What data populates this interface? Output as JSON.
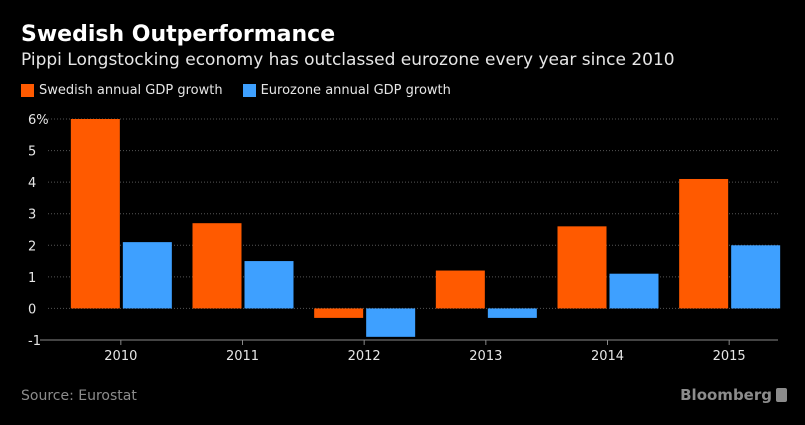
{
  "chart_data": {
    "type": "bar",
    "title": "Swedish Outperformance",
    "subtitle": "Pippi Longstocking economy has outclassed eurozone every year since 2010",
    "categories": [
      "2010",
      "2011",
      "2012",
      "2013",
      "2014",
      "2015"
    ],
    "series": [
      {
        "name": "Swedish annual GDP growth",
        "color": "#ff5a00",
        "values": [
          6.0,
          2.7,
          -0.3,
          1.2,
          2.6,
          4.1
        ]
      },
      {
        "name": "Eurozone annual GDP growth",
        "color": "#3ea0ff",
        "values": [
          2.1,
          1.5,
          -0.9,
          -0.3,
          1.1,
          2.0
        ]
      }
    ],
    "xlabel": "",
    "ylabel": "",
    "ylim": [
      -1,
      6
    ],
    "yticks": [
      "-1",
      "0",
      "1",
      "2",
      "3",
      "4",
      "5",
      "6%"
    ],
    "grid": true,
    "legend": "top-left",
    "source": "Source: Eurostat",
    "brand": "Bloomberg"
  }
}
